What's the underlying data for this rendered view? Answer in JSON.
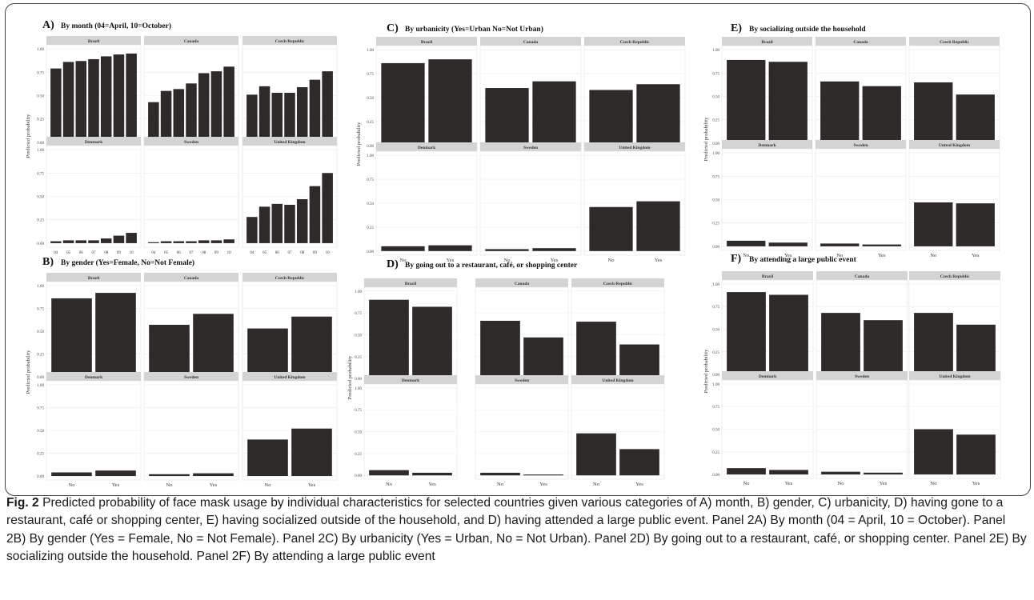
{
  "panels": [
    {
      "letter": "A)",
      "title": "By month (04=April, 10=October)"
    },
    {
      "letter": "B)",
      "title": "By gender (Yes=Female, No=Not Female)"
    },
    {
      "letter": "C)",
      "title": "By urbanicity (Yes=Urban No=Not Urban)"
    },
    {
      "letter": "D)",
      "title": "By going out to a restaurant, café, or shopping center"
    },
    {
      "letter": "E)",
      "title": "By socializing outside the household"
    },
    {
      "letter": "F)",
      "title": "By attending a large public event"
    }
  ],
  "caption": {
    "lead": "Fig. 2",
    "text": "Predicted probability of face mask usage by individual characteristics for selected countries given various categories of A) month, B) gender, C) urbanicity, D) having gone to a restaurant, café or shopping center, E) having socialized outside of the household, and D) having attended a large public event. Panel 2A) By month (04 = April, 10 = October). Panel 2B) By gender (Yes = Female, No = Not Female). Panel 2C) By urbanicity (Yes = Urban, No = Not Urban). Panel 2D) By going out to a restaurant, café, or shopping center. Panel 2E) By socializing outside the household. Panel 2F) By attending a large public event"
  },
  "colors": {
    "bar": "#2f2a2a",
    "strip": "#d4d4d4",
    "grid": "#ebebeb",
    "border": "#444444"
  },
  "chart_data": [
    {
      "panel": "A",
      "type": "bar",
      "ylabel": "Predicted probability",
      "ylim": [
        0,
        1
      ],
      "yticks": [
        "0.00",
        "0.25",
        "0.50",
        "0.75",
        "1.00"
      ],
      "categories": [
        "04",
        "05",
        "06",
        "07",
        "08",
        "09",
        "10"
      ],
      "series": [
        {
          "name": "Brazil",
          "values": [
            0.79,
            0.86,
            0.87,
            0.89,
            0.92,
            0.94,
            0.95
          ]
        },
        {
          "name": "Canada",
          "values": [
            0.43,
            0.55,
            0.57,
            0.63,
            0.74,
            0.76,
            0.81
          ]
        },
        {
          "name": "Czech Republic",
          "values": [
            0.51,
            0.6,
            0.53,
            0.53,
            0.59,
            0.67,
            0.76
          ]
        },
        {
          "name": "Denmark",
          "values": [
            0.02,
            0.03,
            0.03,
            0.03,
            0.05,
            0.08,
            0.11
          ]
        },
        {
          "name": "Sweden",
          "values": [
            0.01,
            0.02,
            0.02,
            0.02,
            0.03,
            0.03,
            0.04
          ]
        },
        {
          "name": "United Kingdom",
          "values": [
            0.28,
            0.39,
            0.42,
            0.41,
            0.47,
            0.61,
            0.75
          ]
        }
      ]
    },
    {
      "panel": "B",
      "type": "bar",
      "ylabel": "Predicted probability",
      "ylim": [
        0,
        1
      ],
      "yticks": [
        "0.00",
        "0.25",
        "0.50",
        "0.75",
        "1.00"
      ],
      "categories": [
        "No",
        "Yes"
      ],
      "series": [
        {
          "name": "Brazil",
          "values": [
            0.86,
            0.92
          ]
        },
        {
          "name": "Canada",
          "values": [
            0.57,
            0.69
          ]
        },
        {
          "name": "Czech Republic",
          "values": [
            0.53,
            0.66
          ]
        },
        {
          "name": "Denmark",
          "values": [
            0.04,
            0.06
          ]
        },
        {
          "name": "Sweden",
          "values": [
            0.02,
            0.03
          ]
        },
        {
          "name": "United Kingdom",
          "values": [
            0.4,
            0.52
          ]
        }
      ]
    },
    {
      "panel": "C",
      "type": "bar",
      "ylabel": "Predicted probability",
      "ylim": [
        0,
        1
      ],
      "yticks": [
        "0.00",
        "0.25",
        "0.50",
        "0.75",
        "1.00"
      ],
      "categories": [
        "No",
        "Yes"
      ],
      "series": [
        {
          "name": "Brazil",
          "values": [
            0.86,
            0.9
          ]
        },
        {
          "name": "Canada",
          "values": [
            0.6,
            0.67
          ]
        },
        {
          "name": "Czech Republic",
          "values": [
            0.58,
            0.64
          ]
        },
        {
          "name": "Denmark",
          "values": [
            0.05,
            0.06
          ]
        },
        {
          "name": "Sweden",
          "values": [
            0.02,
            0.03
          ]
        },
        {
          "name": "United Kingdom",
          "values": [
            0.46,
            0.52
          ]
        }
      ]
    },
    {
      "panel": "D",
      "type": "bar",
      "ylabel": "Predicted probability",
      "ylim": [
        0,
        1
      ],
      "yticks": [
        "0.00",
        "0.25",
        "0.50",
        "0.75",
        "1.00"
      ],
      "categories": [
        "No",
        "Yes"
      ],
      "series": [
        {
          "name": "Brazil",
          "values": [
            0.9,
            0.82
          ]
        },
        {
          "name": "Canada",
          "values": [
            0.66,
            0.47
          ]
        },
        {
          "name": "Czech Republic",
          "values": [
            0.65,
            0.39
          ]
        },
        {
          "name": "Denmark",
          "values": [
            0.06,
            0.03
          ]
        },
        {
          "name": "Sweden",
          "values": [
            0.03,
            0.01
          ]
        },
        {
          "name": "United Kingdom",
          "values": [
            0.48,
            0.3
          ]
        }
      ]
    },
    {
      "panel": "E",
      "type": "bar",
      "ylabel": "Predicted probability",
      "ylim": [
        0,
        1
      ],
      "yticks": [
        "0.00",
        "0.25",
        "0.50",
        "0.75",
        "1.00"
      ],
      "categories": [
        "No",
        "Yes"
      ],
      "series": [
        {
          "name": "Brazil",
          "values": [
            0.89,
            0.87
          ]
        },
        {
          "name": "Canada",
          "values": [
            0.66,
            0.61
          ]
        },
        {
          "name": "Czech Republic",
          "values": [
            0.65,
            0.52
          ]
        },
        {
          "name": "Denmark",
          "values": [
            0.06,
            0.04
          ]
        },
        {
          "name": "Sweden",
          "values": [
            0.03,
            0.02
          ]
        },
        {
          "name": "United Kingdom",
          "values": [
            0.47,
            0.46
          ]
        }
      ]
    },
    {
      "panel": "F",
      "type": "bar",
      "ylabel": "Predicted probability",
      "ylim": [
        0,
        1
      ],
      "yticks": [
        "0.00",
        "0.25",
        "0.50",
        "0.75",
        "1.00"
      ],
      "categories": [
        "No",
        "Yes"
      ],
      "series": [
        {
          "name": "Brazil",
          "values": [
            0.91,
            0.88
          ]
        },
        {
          "name": "Canada",
          "values": [
            0.68,
            0.6
          ]
        },
        {
          "name": "Czech Republic",
          "values": [
            0.68,
            0.55
          ]
        },
        {
          "name": "Denmark",
          "values": [
            0.07,
            0.05
          ]
        },
        {
          "name": "Sweden",
          "values": [
            0.03,
            0.02
          ]
        },
        {
          "name": "United Kingdom",
          "values": [
            0.5,
            0.44
          ]
        }
      ]
    }
  ]
}
